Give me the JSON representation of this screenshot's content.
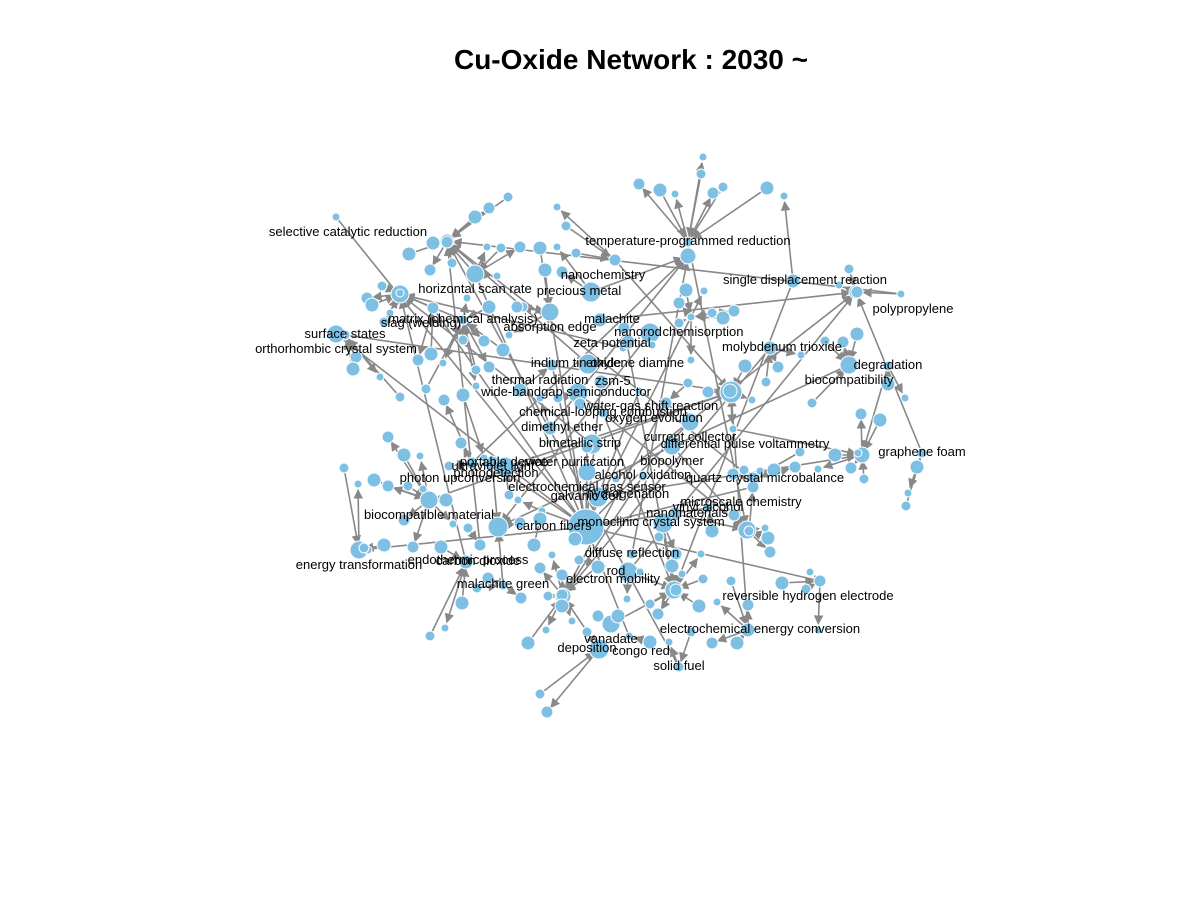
{
  "title": "Cu-Oxide Network : 2030 ~",
  "colors": {
    "node": "#7ec0e3",
    "edge": "#888888",
    "background": "#ffffff"
  },
  "labels": [
    "selective catalytic reduction",
    "temperature-programmed reduction",
    "nanochemistry",
    "single displacement reaction",
    "horizontal scan rate",
    "precious metal",
    "polypropylene",
    "matrix (chemical analysis)",
    "slag (welding)",
    "malachite",
    "absorption edge",
    "nanorod",
    "chemisorption",
    "surface states",
    "zeta potential",
    "molybdenum trioxide",
    "orthorhombic crystal system",
    "indium tin oxide",
    "ethylene diamine",
    "degradation",
    "thermal radiation",
    "zsm-5",
    "biocompatibility",
    "wide-bandgap semiconductor",
    "water-gas shift reaction",
    "chemical-looping combustion",
    "oxygen evolution",
    "dimethyl ether",
    "current collector",
    "bimetallic strip",
    "differential pulse voltammetry",
    "graphene foam",
    "water purification",
    "portable device",
    "biopolymer",
    "ultraviolet light",
    "photodetection",
    "alcohol oxidation",
    "photon upconversion",
    "quartz crystal microbalance",
    "electrochemical gas sensor",
    "galvanic cell",
    "hydrogenation",
    "vinyl alcohol",
    "microscale chemistry",
    "nanomaterials",
    "biocompatible material",
    "monoclinic crystal system",
    "carbon fibers",
    "diffuse reflection",
    "endothermic process",
    "carbon dioxide",
    "energy transformation",
    "rod",
    "electron mobility",
    "malachite green",
    "reversible hydrogen electrode",
    "electrochemical energy conversion",
    "vanadate",
    "deposition",
    "congo red",
    "solid fuel"
  ]
}
